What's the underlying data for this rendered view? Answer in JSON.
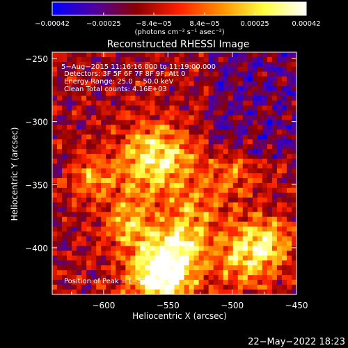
{
  "chart_data": {
    "type": "heatmap",
    "title": "Reconstructed RHESSI Image",
    "xlabel": "Heliocentric X (arcsec)",
    "ylabel": "Heliocentric Y (arcsec)",
    "xlim": [
      -640,
      -450
    ],
    "ylim": [
      -437,
      -245
    ],
    "x_ticks": [
      -600,
      -550,
      -500,
      -450
    ],
    "y_ticks": [
      -250,
      -300,
      -350,
      -400
    ],
    "x_tick_labels": [
      "−600",
      "−550",
      "−500",
      "−450"
    ],
    "y_tick_labels": [
      "−250",
      "−300",
      "−350",
      "−400"
    ],
    "colorbar": {
      "range": [
        -0.00042,
        0.00042
      ],
      "tick_values": [
        -0.00042,
        -0.00025,
        -8.4e-05,
        8.4e-05,
        0.00025,
        0.00042
      ],
      "tick_labels": [
        "−0.00042",
        "−0.00025",
        "−8.4e−05",
        "8.4e−05",
        "0.00025",
        "0.00042"
      ],
      "units": "(photons cm⁻² s⁻¹ asec⁻²)",
      "colormap": [
        "#0000ff",
        "#5000a0",
        "#8a0000",
        "#ff2000",
        "#ff9000",
        "#ffff40",
        "#ffffff"
      ]
    },
    "annotations": [
      "5−Aug−2015 11:16:16.000 to 11:19:00.000",
      "Detectors: 3F 5F 6F 7F 8F 9F, Att 0",
      "Energy Range: 25.0 − 50.0 keV",
      "Clean    Total counts: 4.16E+03"
    ],
    "peak_label": "Position of Peak = [−571,−426]",
    "peak": {
      "x": -571,
      "y": -426
    },
    "grid": false
  },
  "timestamp": "22−May−2022 18:23"
}
